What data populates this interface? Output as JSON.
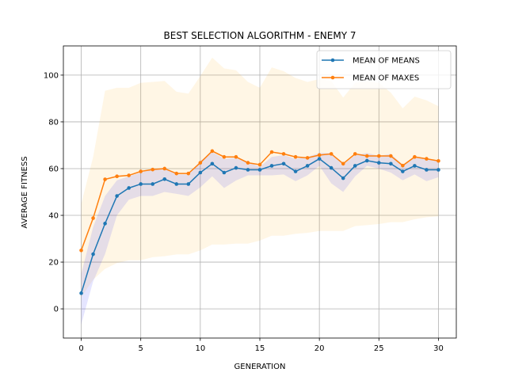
{
  "chart_data": {
    "type": "line",
    "title": "BEST SELECTION ALGORITHM - ENEMY 7",
    "xlabel": "GENERATION",
    "ylabel": "AVERAGE FITNESS",
    "xlim": [
      -1.5,
      31.5
    ],
    "ylim": [
      -12.5,
      112.5
    ],
    "xticks": [
      0,
      5,
      10,
      15,
      20,
      25,
      30
    ],
    "yticks": [
      0,
      20,
      40,
      60,
      80,
      100
    ],
    "grid": true,
    "legend_position": "top-right",
    "x": [
      0,
      1,
      2,
      3,
      4,
      5,
      6,
      7,
      8,
      9,
      10,
      11,
      12,
      13,
      14,
      15,
      16,
      17,
      18,
      19,
      20,
      21,
      22,
      23,
      24,
      25,
      26,
      27,
      28,
      29,
      30
    ],
    "series": [
      {
        "name": "MEAN OF MEANS",
        "color": "#1f77b4",
        "values": [
          6.7,
          23.4,
          36.5,
          48.3,
          51.7,
          53.4,
          53.4,
          55.5,
          53.4,
          53.4,
          58.3,
          62.1,
          58.3,
          60.3,
          59.5,
          59.5,
          61.2,
          62.1,
          58.8,
          61.2,
          64.2,
          60.3,
          55.9,
          61.2,
          63.4,
          62.5,
          62.1,
          58.8,
          61.2,
          59.5,
          59.5
        ],
        "band_low": [
          -6.7,
          11.7,
          23.4,
          40.0,
          46.7,
          48.3,
          48.3,
          50.0,
          49.2,
          48.3,
          52.0,
          56.7,
          51.7,
          54.9,
          57.1,
          57.1,
          57.1,
          57.5,
          54.6,
          57.1,
          61.2,
          53.7,
          50.0,
          56.7,
          61.2,
          60.0,
          58.3,
          55.0,
          57.5,
          54.6,
          56.3
        ],
        "band_high": [
          15.0,
          35.0,
          48.3,
          55.0,
          56.7,
          58.3,
          59.6,
          60.4,
          57.5,
          57.5,
          63.3,
          67.1,
          64.2,
          64.6,
          62.9,
          60.8,
          65.0,
          65.8,
          64.2,
          65.0,
          66.7,
          66.7,
          61.7,
          65.8,
          66.7,
          65.4,
          66.3,
          61.7,
          64.6,
          64.2,
          63.3
        ]
      },
      {
        "name": "MEAN OF MAXES",
        "color": "#ff7f0e",
        "values": [
          25.0,
          38.8,
          55.4,
          56.7,
          57.1,
          58.8,
          59.6,
          60.0,
          57.9,
          57.9,
          62.5,
          67.5,
          65.0,
          65.0,
          62.5,
          61.7,
          67.1,
          66.3,
          65.0,
          64.6,
          65.8,
          66.3,
          62.1,
          66.3,
          65.4,
          65.4,
          65.4,
          61.3,
          65.0,
          64.2,
          63.3
        ],
        "band_low": [
          5.0,
          12.5,
          17.1,
          19.6,
          20.8,
          20.8,
          22.1,
          22.5,
          23.3,
          23.3,
          25.0,
          27.5,
          27.5,
          27.9,
          27.9,
          29.2,
          31.3,
          31.3,
          32.1,
          32.5,
          33.3,
          33.3,
          33.3,
          35.4,
          35.8,
          36.3,
          37.1,
          37.1,
          38.3,
          39.2,
          39.6
        ],
        "band_high": [
          45.0,
          65.0,
          93.3,
          94.6,
          94.6,
          96.7,
          97.1,
          97.5,
          92.9,
          92.1,
          99.6,
          107.5,
          102.9,
          102.1,
          97.1,
          94.6,
          103.3,
          101.7,
          98.8,
          97.1,
          98.3,
          97.5,
          90.4,
          96.7,
          97.5,
          96.7,
          92.5,
          85.8,
          90.8,
          89.2,
          86.7
        ]
      }
    ]
  }
}
